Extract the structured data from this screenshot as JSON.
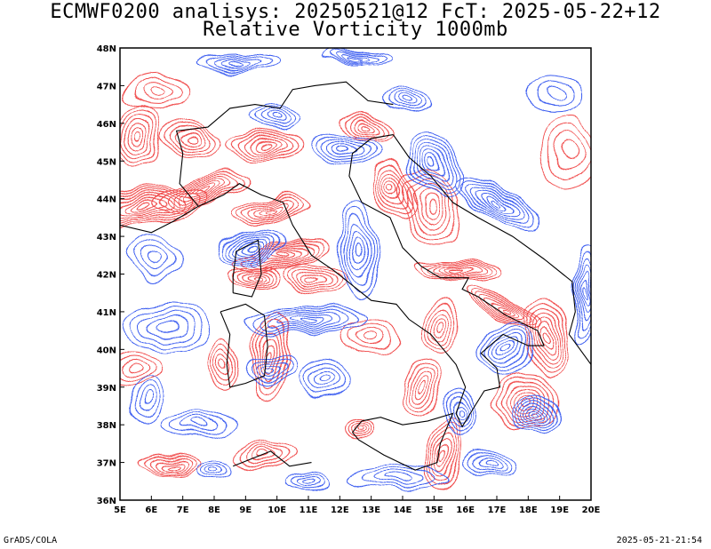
{
  "header": {
    "title_line1": "ECMWF0200 analisys: 20250521@12 FcT: 2025-05-22+12",
    "title_line2": "Relative Vorticity 1000mb"
  },
  "map": {
    "lon_range": [
      5,
      20
    ],
    "lat_range": [
      36,
      48
    ],
    "lon_labels": [
      "5E",
      "6E",
      "7E",
      "8E",
      "9E",
      "10E",
      "11E",
      "12E",
      "13E",
      "14E",
      "15E",
      "16E",
      "17E",
      "18E",
      "19E",
      "20E"
    ],
    "lat_labels": [
      "36N",
      "37N",
      "38N",
      "39N",
      "40N",
      "41N",
      "42N",
      "43N",
      "44N",
      "45N",
      "46N",
      "47N",
      "48N"
    ],
    "colors": {
      "positive_contours": "#f04a4a",
      "negative_contours": "#3a5cf0",
      "coastline": "#000000",
      "background": "#ffffff"
    }
  },
  "footer": {
    "left": "GrADS/COLA",
    "right": "2025-05-21-21:54"
  }
}
